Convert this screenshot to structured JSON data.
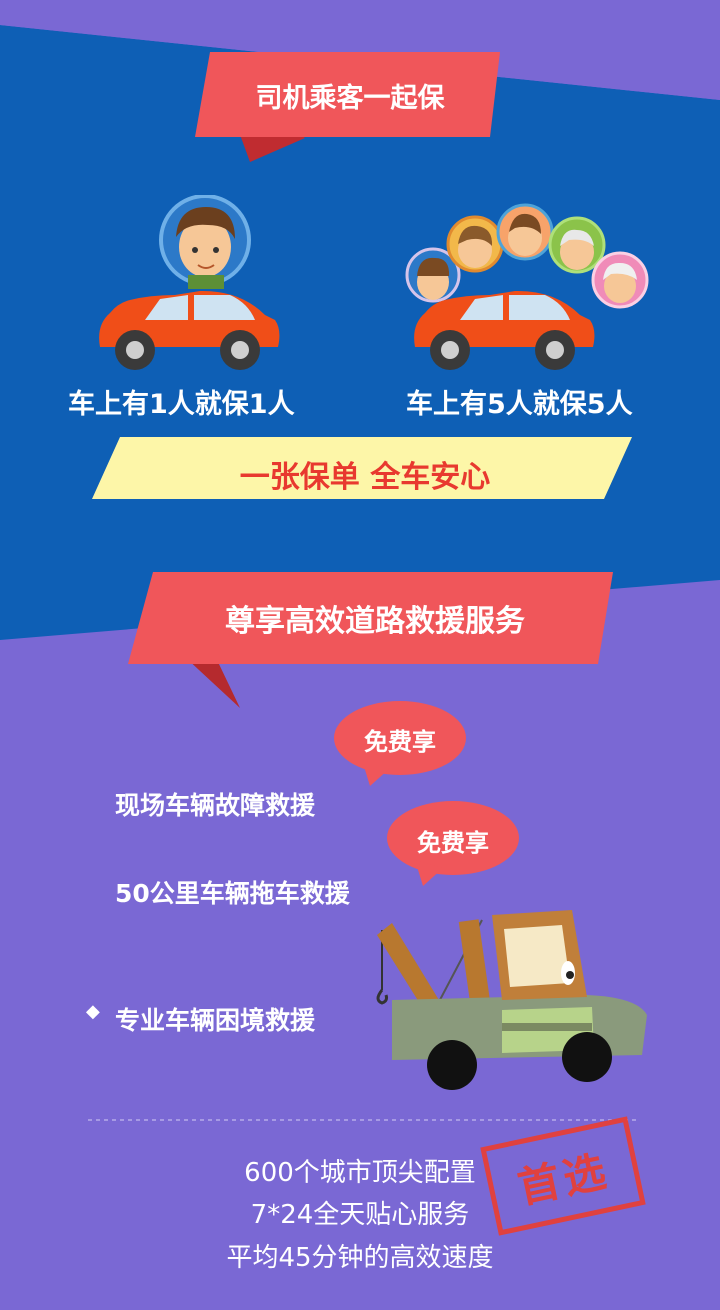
{
  "section1": {
    "banner": "司机乘客一起保",
    "left_caption": "车上有1人就保1人",
    "right_caption": "车上有5人就保5人",
    "slogan": "一张保单  全车安心"
  },
  "section2": {
    "banner": "尊享高效道路救援服务",
    "bubble_label": "免费享",
    "services": [
      "现场车辆故障救援",
      "50公里车辆拖车救援",
      "专业车辆困境救援"
    ],
    "bullet": "◆"
  },
  "footer": {
    "lines": [
      "600个城市顶尖配置",
      "7*24全天贴心服务",
      "平均45分钟的高效速度"
    ],
    "stamp": "首选"
  },
  "colors": {
    "blue_bg": "#0e5fb5",
    "purple_bg": "#7a68d4",
    "banner_red": "#f0565a",
    "banner_shadow": "#b52a2e",
    "slogan_yellow": "#fdf6a8",
    "slogan_red": "#e8392f",
    "car_orange": "#f04e18"
  }
}
